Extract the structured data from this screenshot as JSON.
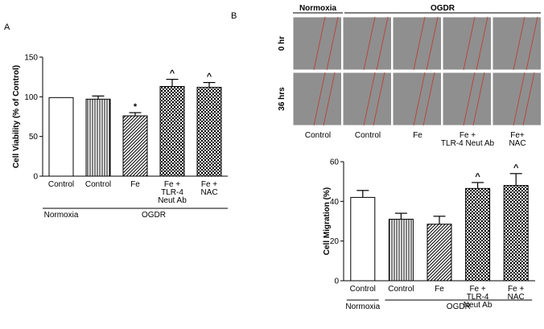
{
  "panels": {
    "a": "A",
    "b": "B"
  },
  "chart_data": [
    {
      "type": "bar",
      "ylabel": "Cell Viability (% of Control)",
      "ylim": [
        0,
        150
      ],
      "yticks": [
        "0",
        "50",
        "100",
        "150"
      ],
      "categories": [
        {
          "lines": [
            "Control"
          ]
        },
        {
          "lines": [
            "Control"
          ]
        },
        {
          "lines": [
            "Fe"
          ]
        },
        {
          "lines": [
            "Fe +",
            "TLR-4",
            "Neut Ab"
          ]
        },
        {
          "lines": [
            "Fe +",
            "NAC"
          ]
        }
      ],
      "values": [
        99,
        97,
        76,
        113,
        112
      ],
      "errors": [
        0,
        4,
        4,
        9,
        6
      ],
      "patterns": [
        "white",
        "vertical",
        "diagonal",
        "check",
        "check"
      ],
      "significance": [
        "",
        "",
        "*",
        "^",
        "^"
      ],
      "groups": [
        {
          "label": "Normoxia",
          "from": 0,
          "to": 0
        },
        {
          "label": "OGDR",
          "from": 1,
          "to": 4
        }
      ]
    },
    {
      "type": "bar",
      "ylabel": "Cell Migration (%)",
      "ylim": [
        0,
        60
      ],
      "yticks": [
        "0",
        "20",
        "40",
        "60"
      ],
      "categories": [
        {
          "lines": [
            "Control"
          ]
        },
        {
          "lines": [
            "Control"
          ]
        },
        {
          "lines": [
            "Fe"
          ]
        },
        {
          "lines": [
            "Fe +",
            "TLR-4",
            "Neut Ab"
          ]
        },
        {
          "lines": [
            "Fe +",
            "NAC"
          ]
        }
      ],
      "values": [
        42,
        31,
        28.5,
        46.5,
        48
      ],
      "errors": [
        3.5,
        3,
        4,
        3,
        6
      ],
      "patterns": [
        "white",
        "vertical",
        "diagonal",
        "check",
        "check"
      ],
      "significance": [
        "",
        "",
        "",
        "^",
        "^"
      ],
      "groups": [
        {
          "label": "Normoxia",
          "from": 0,
          "to": 0
        },
        {
          "label": "OGDR",
          "from": 1,
          "to": 4
        }
      ]
    }
  ],
  "micrographs": {
    "headers": [
      "Normoxia",
      "OGDR"
    ],
    "rows": [
      "0 hr",
      "36 hrs"
    ],
    "columns": [
      {
        "lines": [
          "Control"
        ]
      },
      {
        "lines": [
          "Control"
        ]
      },
      {
        "lines": [
          "Fe"
        ]
      },
      {
        "lines": [
          "Fe +",
          "TLR-4 Neut Ab"
        ]
      },
      {
        "lines": [
          "Fe+",
          "NAC"
        ]
      }
    ],
    "colors": {
      "photo": "#8f8f8f",
      "scratch_line": "#c0392b"
    }
  }
}
